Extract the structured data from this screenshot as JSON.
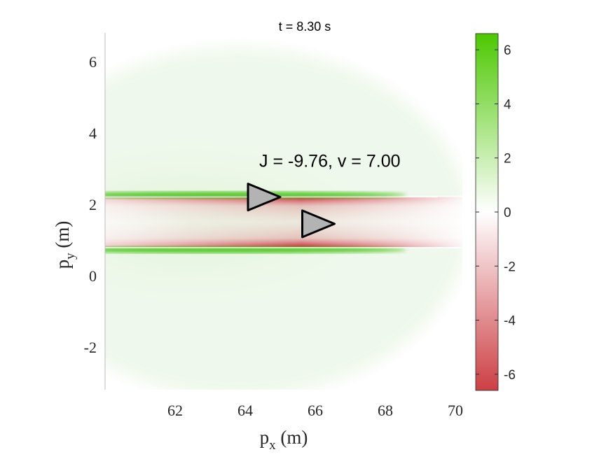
{
  "chart_data": {
    "type": "heatmap",
    "time_label": "t = 8.30 s",
    "annotation": "J = -9.76, v = 7.00",
    "xlabel": {
      "base": "p",
      "sub": "x",
      "unit": " (m)"
    },
    "ylabel": {
      "base": "p",
      "sub": "y",
      "unit": " (m)"
    },
    "xlim": [
      60.0,
      70.2
    ],
    "ylim": [
      -3.2,
      6.8
    ],
    "xticks": [
      {
        "value": 62,
        "label": "62"
      },
      {
        "value": 64,
        "label": "64"
      },
      {
        "value": 66,
        "label": "66"
      },
      {
        "value": 68,
        "label": "68"
      },
      {
        "value": 70,
        "label": "70"
      }
    ],
    "yticks": [
      {
        "value": -2,
        "label": "-2"
      },
      {
        "value": 0,
        "label": "0"
      },
      {
        "value": 2,
        "label": "2"
      },
      {
        "value": 4,
        "label": "4"
      },
      {
        "value": 6,
        "label": "6"
      }
    ],
    "colorbar": {
      "range": [
        -6.6,
        6.6
      ],
      "ticks": [
        {
          "value": 6,
          "label": "6"
        },
        {
          "value": 4,
          "label": "4"
        },
        {
          "value": 2,
          "label": "2"
        },
        {
          "value": 0,
          "label": "0"
        },
        {
          "value": -2,
          "label": "-2"
        },
        {
          "value": -4,
          "label": "-4"
        },
        {
          "value": -6,
          "label": "-6"
        }
      ],
      "colors": {
        "positive": "#4cc800",
        "zero": "#ffffff",
        "negative": "#cc3f44"
      }
    },
    "field": {
      "description_values": "green positive ridges at lane edges, red negative band inside lane",
      "lane_lower_y": 0.8,
      "lane_upper_y": 2.2,
      "peak_positive": 6.0,
      "peak_negative": -5.0
    },
    "agents": [
      {
        "x": 64.5,
        "y": 2.2,
        "color": "#b3b3b3"
      },
      {
        "x": 66.05,
        "y": 1.45,
        "color": "#b3b3b3"
      }
    ]
  }
}
